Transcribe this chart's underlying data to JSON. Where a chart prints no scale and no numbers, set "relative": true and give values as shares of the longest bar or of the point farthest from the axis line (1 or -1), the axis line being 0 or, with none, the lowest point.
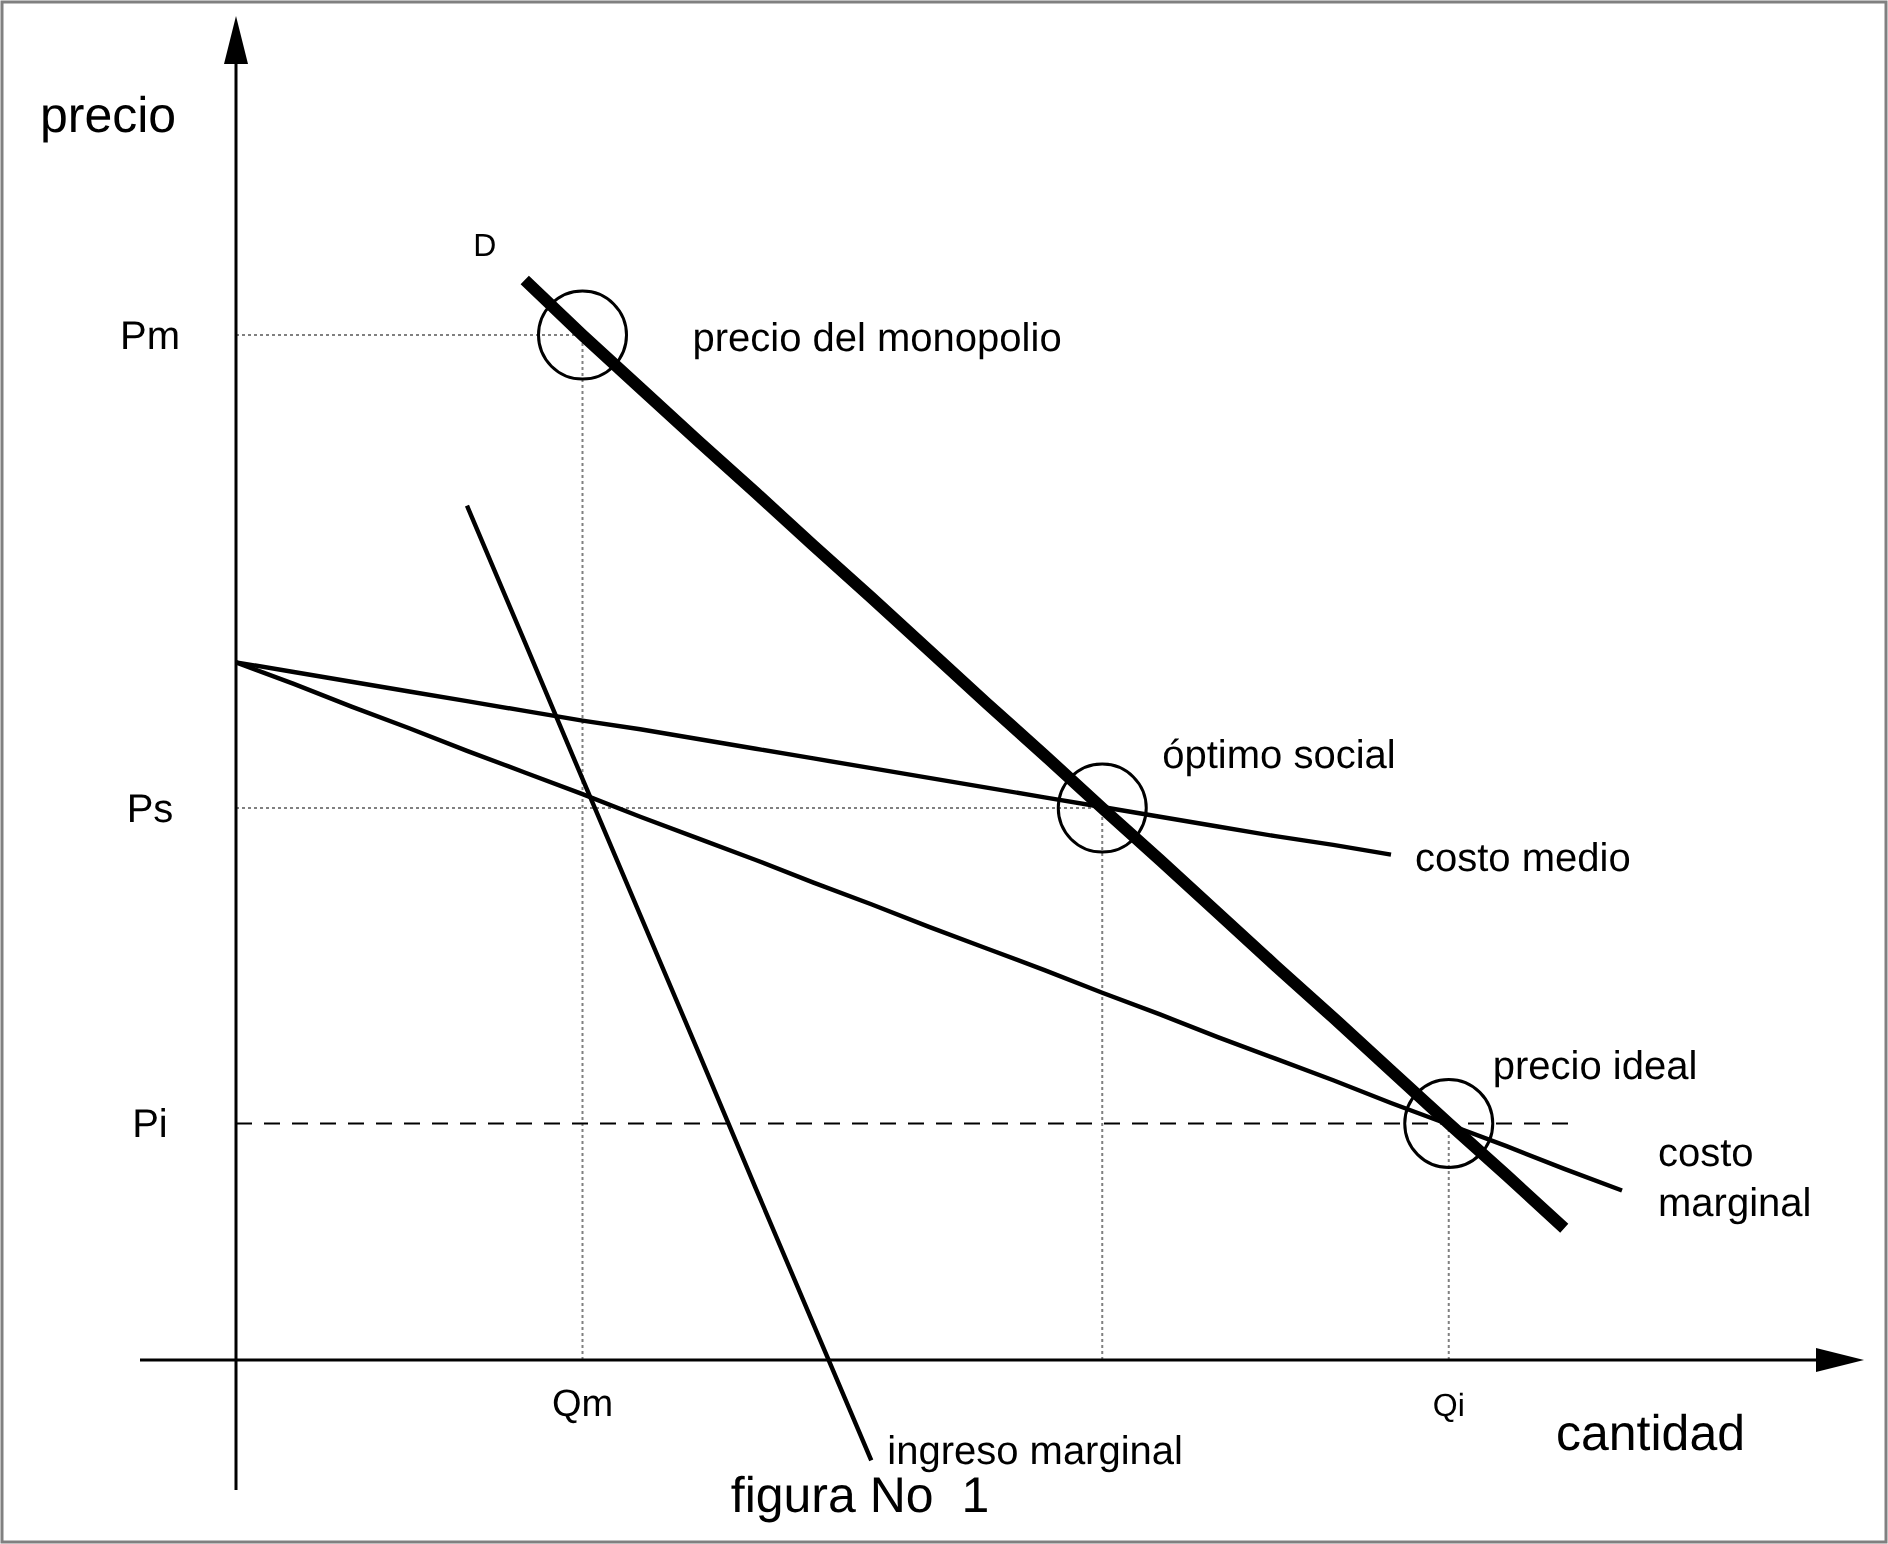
{
  "chart_data": {
    "type": "line",
    "relative": true,
    "xlabel": "cantidad",
    "ylabel": "precio",
    "line_style": "solid",
    "categories": [
      null,
      null,
      null,
      null,
      null,
      null,
      "Qm",
      null,
      null,
      null,
      null,
      null,
      null,
      null,
      null,
      null,
      null,
      null,
      null,
      null,
      null,
      "Qi",
      null,
      null,
      null
    ],
    "series": [
      {
        "name": "D",
        "color": "#000000",
        "values": [
          null,
          null,
          null,
          null,
          null,
          1,
          0.949,
          0.9,
          0.851,
          0.803,
          0.754,
          0.706,
          0.657,
          0.608,
          0.56,
          0.511,
          0.463,
          0.414,
          0.365,
          0.317,
          0.268,
          0.219,
          0.171,
          0.122,
          null
        ]
      },
      {
        "name": "ingreso marginal",
        "color": "#000000",
        "values": [
          null,
          null,
          null,
          null,
          0.791,
          0.665,
          0.538,
          0.412,
          0.286,
          0.159,
          0.033,
          -0.093,
          null,
          null,
          null,
          null,
          null,
          null,
          null,
          null,
          null,
          null,
          null,
          null,
          null
        ]
      },
      {
        "name": "costo medio",
        "color": "#000000",
        "values": [
          0.646,
          0.637,
          0.628,
          0.619,
          0.61,
          0.601,
          0.592,
          0.584,
          0.575,
          0.566,
          0.557,
          0.548,
          0.539,
          0.53,
          0.521,
          0.512,
          0.503,
          0.494,
          0.485,
          0.477,
          0.468,
          null,
          null,
          null,
          null
        ]
      },
      {
        "name": "costo marginal",
        "color": "#000000",
        "values": [
          0.646,
          0.626,
          0.605,
          0.585,
          0.564,
          0.544,
          0.524,
          0.503,
          0.483,
          0.463,
          0.442,
          0.422,
          0.401,
          0.381,
          0.361,
          0.34,
          0.32,
          0.299,
          0.279,
          0.259,
          0.238,
          0.218,
          0.198,
          0.177,
          0.157
        ]
      }
    ],
    "ref_lines": [
      {
        "axis": "y",
        "value": 0.949,
        "label": "Pm",
        "line_style": "dotted",
        "color": "#808080"
      },
      {
        "axis": "y",
        "value": 0.511,
        "label": "Ps",
        "line_style": "dotted",
        "color": "#808080"
      },
      {
        "axis": "y",
        "value": 0.219,
        "label": "Pi",
        "line_style": "dashed",
        "color": "#000000"
      }
    ],
    "annotations": [
      {
        "text": "precio del monopolio",
        "x": "Qm",
        "y": 0.949
      },
      "óptimo social",
      {
        "text": "precio ideal",
        "x": "Qi",
        "y": 0.219
      },
      "figura No  1"
    ]
  }
}
